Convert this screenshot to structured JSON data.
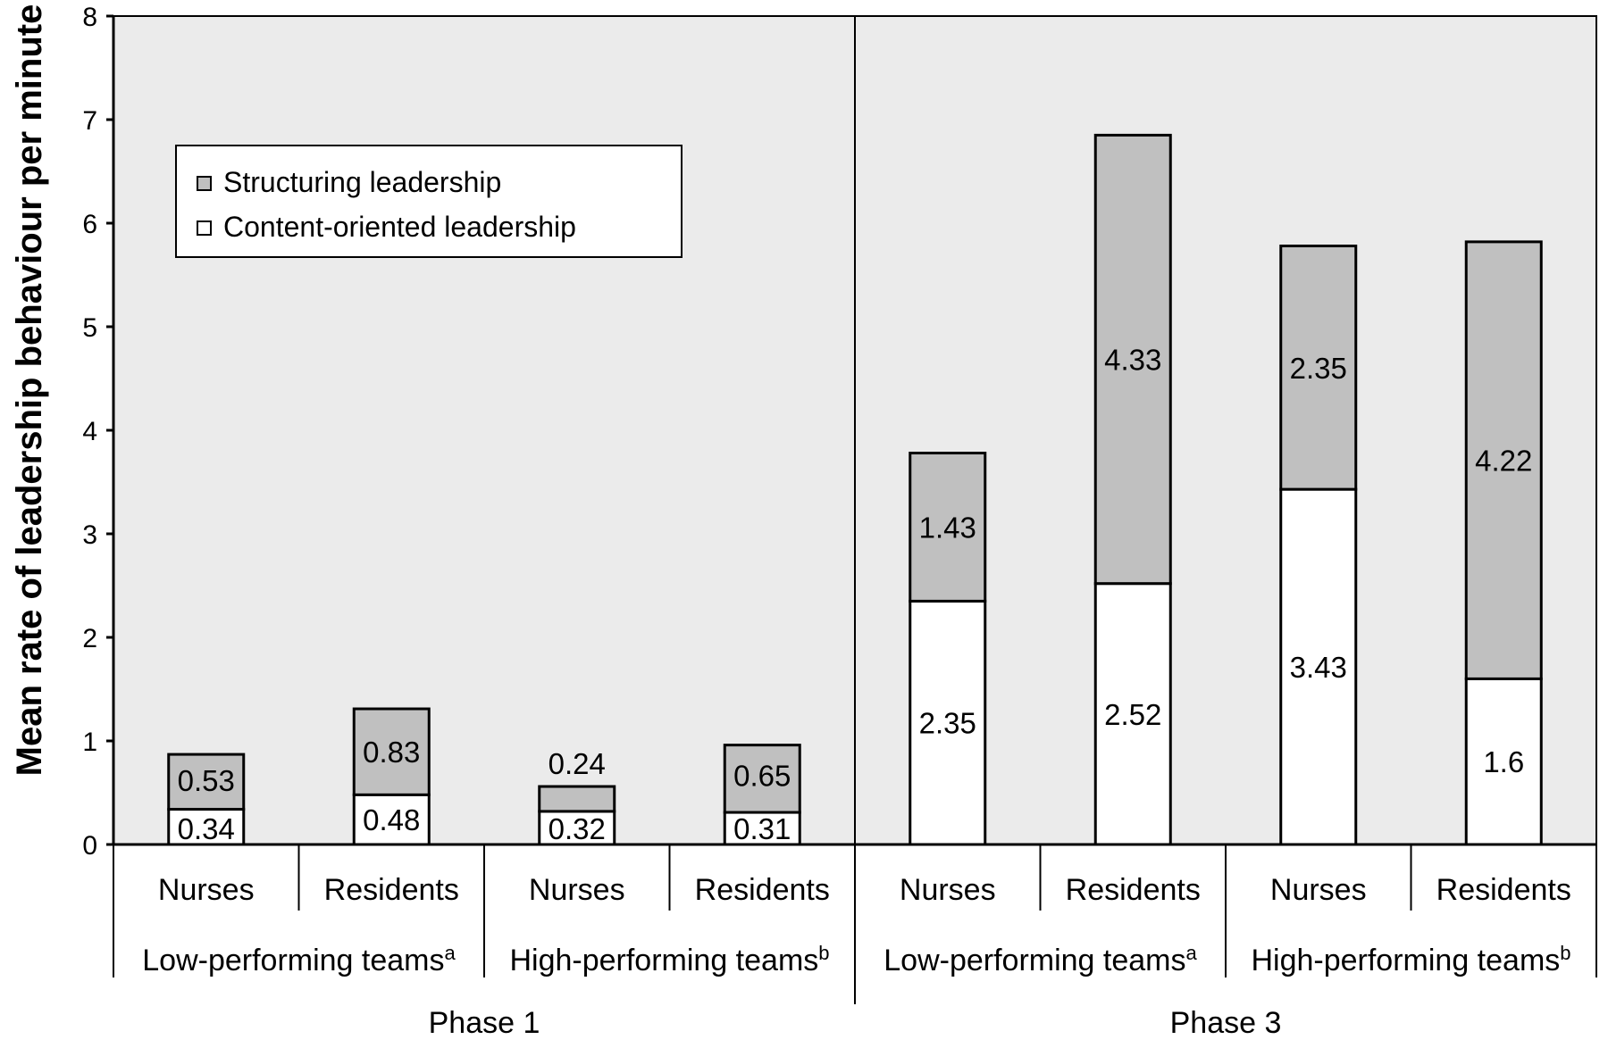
{
  "chart_data": {
    "type": "bar",
    "stacked": true,
    "title": "",
    "xlabel": "",
    "ylabel": "Mean rate of leadership behaviour per minute",
    "ylim": [
      0,
      8
    ],
    "yticks": [
      "0",
      "1",
      "2",
      "3",
      "4",
      "5",
      "6",
      "7",
      "8"
    ],
    "grid": false,
    "legend_position": "top-left",
    "categories": [
      "Nurses",
      "Residents",
      "Nurses",
      "Residents",
      "Nurses",
      "Residents",
      "Nurses",
      "Residents"
    ],
    "groups": [
      {
        "label": "Low-performing teams",
        "superscript": "a",
        "span": [
          0,
          1
        ]
      },
      {
        "label": "High-performing teams",
        "superscript": "b",
        "span": [
          2,
          3
        ]
      },
      {
        "label": "Low-performing teams",
        "superscript": "a",
        "span": [
          4,
          5
        ]
      },
      {
        "label": "High-performing teams",
        "superscript": "b",
        "span": [
          6,
          7
        ]
      }
    ],
    "phases": [
      {
        "label": "Phase 1",
        "span": [
          0,
          3
        ]
      },
      {
        "label": "Phase 3",
        "span": [
          4,
          7
        ]
      }
    ],
    "series": [
      {
        "name": "Content-oriented leadership",
        "color": "#ffffff",
        "values": [
          0.34,
          0.48,
          0.32,
          0.31,
          2.35,
          2.52,
          3.43,
          1.6
        ],
        "labels": [
          "0.34",
          "0.48",
          "0.32",
          "0.31",
          "2.35",
          "2.52",
          "3.43",
          "1.6"
        ]
      },
      {
        "name": "Structuring leadership",
        "color": "#c0c0c0",
        "values": [
          0.53,
          0.83,
          0.24,
          0.65,
          1.43,
          4.33,
          2.35,
          4.22
        ],
        "labels": [
          "0.53",
          "0.83",
          "0.24",
          "0.65",
          "1.43",
          "4.33",
          "2.35",
          "4.22"
        ]
      }
    ],
    "legend": [
      "Structuring leadership",
      "Content-oriented leadership"
    ],
    "plot_background": "#ebebeb"
  }
}
